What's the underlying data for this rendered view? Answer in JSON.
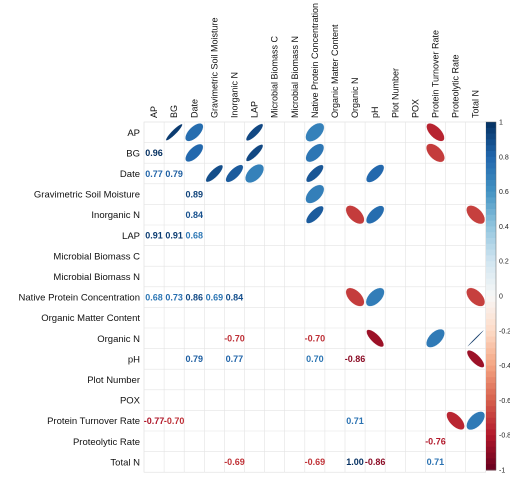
{
  "chart_data": {
    "type": "heatmap",
    "variables": [
      "AP",
      "BG",
      "Date",
      "Gravimetric Soil Moisture",
      "Inorganic N",
      "LAP",
      "Microbial Biomass C",
      "Microbial Biomass N",
      "Native Protein Concentration",
      "Organic Matter Content",
      "Organic N",
      "pH",
      "Plot Number",
      "POX",
      "Protein Turnover Rate",
      "Proteolytic Rate",
      "Total N"
    ],
    "lower_triangle": "numbers",
    "upper_triangle": "ellipses",
    "correlations": [
      {
        "row": "BG",
        "col": "AP",
        "value": 0.96,
        "label": "0.96"
      },
      {
        "row": "Date",
        "col": "AP",
        "value": 0.77,
        "label": "0.77"
      },
      {
        "row": "Date",
        "col": "BG",
        "value": 0.79,
        "label": "0.79"
      },
      {
        "row": "Gravimetric Soil Moisture",
        "col": "Date",
        "value": 0.89,
        "label": "0.89"
      },
      {
        "row": "Inorganic N",
        "col": "Date",
        "value": 0.84,
        "label": "0.84"
      },
      {
        "row": "LAP",
        "col": "AP",
        "value": 0.91,
        "label": "0.91"
      },
      {
        "row": "LAP",
        "col": "BG",
        "value": 0.91,
        "label": "0.91"
      },
      {
        "row": "LAP",
        "col": "Date",
        "value": 0.68,
        "label": "0.68"
      },
      {
        "row": "Native Protein Concentration",
        "col": "AP",
        "value": 0.68,
        "label": "0.68"
      },
      {
        "row": "Native Protein Concentration",
        "col": "BG",
        "value": 0.73,
        "label": "0.73"
      },
      {
        "row": "Native Protein Concentration",
        "col": "Date",
        "value": 0.86,
        "label": "0.86"
      },
      {
        "row": "Native Protein Concentration",
        "col": "Gravimetric Soil Moisture",
        "value": 0.69,
        "label": "0.69"
      },
      {
        "row": "Native Protein Concentration",
        "col": "Inorganic N",
        "value": 0.84,
        "label": "0.84"
      },
      {
        "row": "Organic N",
        "col": "Inorganic N",
        "value": -0.7,
        "label": "-0.70"
      },
      {
        "row": "Organic N",
        "col": "Native Protein Concentration",
        "value": -0.7,
        "label": "-0.70"
      },
      {
        "row": "pH",
        "col": "Date",
        "value": 0.79,
        "label": "0.79"
      },
      {
        "row": "pH",
        "col": "Inorganic N",
        "value": 0.77,
        "label": "0.77"
      },
      {
        "row": "pH",
        "col": "Native Protein Concentration",
        "value": 0.7,
        "label": "0.70"
      },
      {
        "row": "pH",
        "col": "Organic N",
        "value": -0.86,
        "label": "-0.86"
      },
      {
        "row": "Protein Turnover Rate",
        "col": "AP",
        "value": -0.77,
        "label": "-0.77"
      },
      {
        "row": "Protein Turnover Rate",
        "col": "BG",
        "value": -0.7,
        "label": "-0.70"
      },
      {
        "row": "Protein Turnover Rate",
        "col": "Organic N",
        "value": 0.71,
        "label": "0.71"
      },
      {
        "row": "Proteolytic Rate",
        "col": "Protein Turnover Rate",
        "value": -0.76,
        "label": "-0.76"
      },
      {
        "row": "Total N",
        "col": "Inorganic N",
        "value": -0.69,
        "label": "-0.69"
      },
      {
        "row": "Total N",
        "col": "Native Protein Concentration",
        "value": -0.69,
        "label": "-0.69"
      },
      {
        "row": "Total N",
        "col": "Organic N",
        "value": 1.0,
        "label": "1.00"
      },
      {
        "row": "Total N",
        "col": "pH",
        "value": -0.86,
        "label": "-0.86"
      },
      {
        "row": "Total N",
        "col": "Protein Turnover Rate",
        "value": 0.71,
        "label": "0.71"
      }
    ],
    "colorbar": {
      "range": [
        -1,
        1
      ],
      "ticks": [
        "-1",
        "-0.8",
        "-0.6",
        "-0.4",
        "-0.2",
        "0",
        "0.2",
        "0.4",
        "0.6",
        "0.8",
        "1"
      ],
      "colors": {
        "negative": "#67001F",
        "mid_negative": "#D6604D",
        "zero": "#F7F7F7",
        "mid_positive": "#4393C3",
        "positive": "#053061"
      }
    },
    "grid": true,
    "legend_position": "right"
  }
}
